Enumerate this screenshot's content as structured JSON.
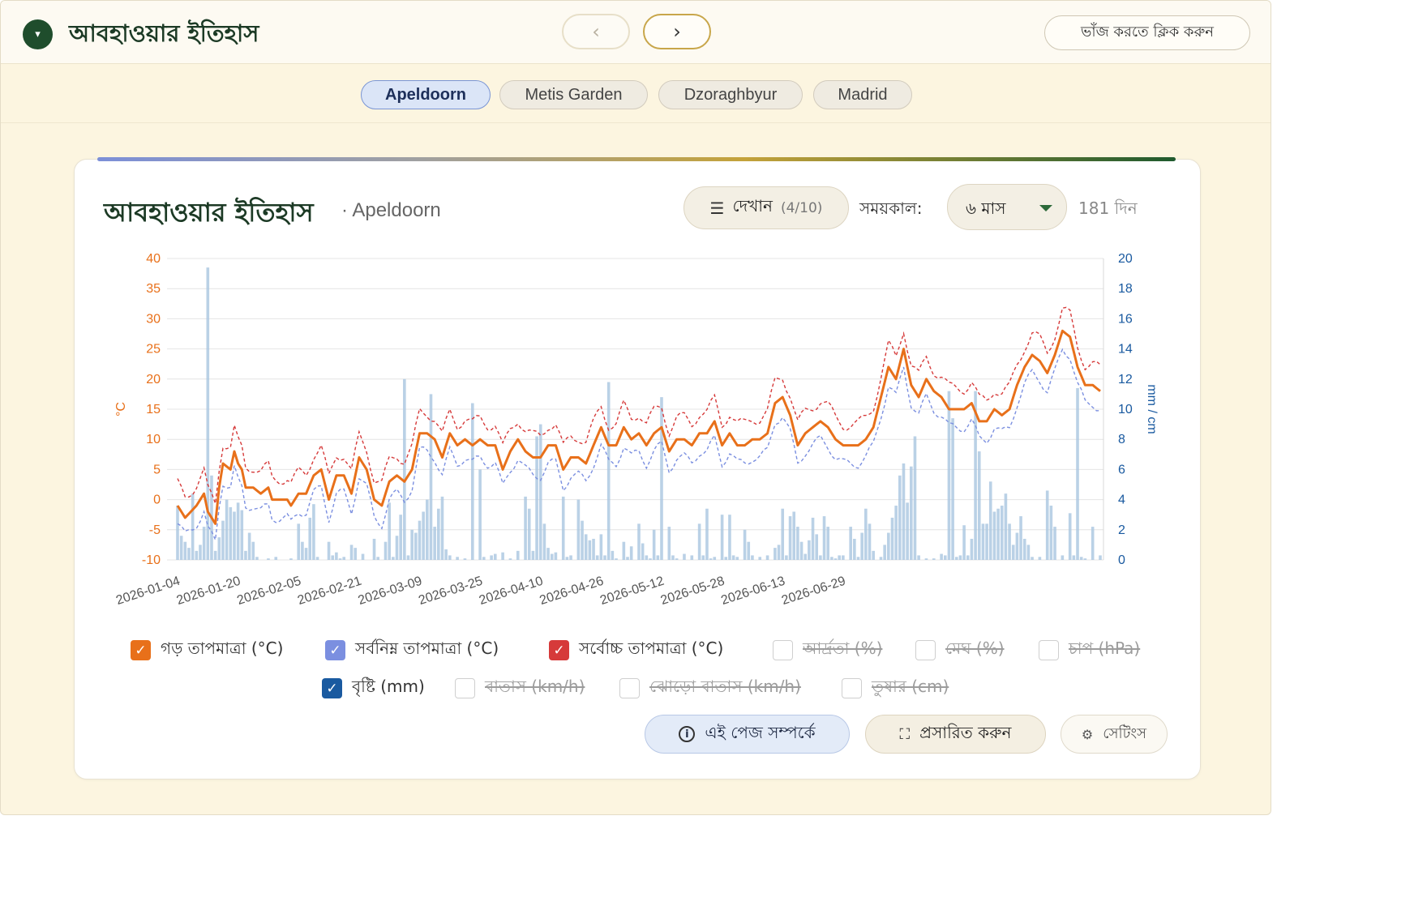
{
  "header": {
    "title": "আবহাওয়ার ইতিহাস",
    "collapse_icon": "▾",
    "prev_icon": "‹",
    "next_icon": "›",
    "collapse_label": "ভাঁজ করতে ক্লিক করুন"
  },
  "locations": [
    "Apeldoorn",
    "Metis Garden",
    "Dzoraghbyur",
    "Madrid"
  ],
  "active_location": "Apeldoorn",
  "card": {
    "title": "আবহাওয়ার ইতিহাস",
    "location": "· Apeldoorn",
    "show_icon": "☰",
    "show_label": "দেখান",
    "show_count": "(4/10)",
    "period_label": "সময়কাল:",
    "period_value": "৬ মাস",
    "days": "181 দিন"
  },
  "legend": [
    {
      "label": "গড় তাপমাত্রা (°C)",
      "checked": true,
      "color": "#e8701a"
    },
    {
      "label": "সর্বনিম্ন তাপমাত্রা (°C)",
      "checked": true,
      "color": "#7b8fe0"
    },
    {
      "label": "সর্বোচ্চ তাপমাত্রা (°C)",
      "checked": true,
      "color": "#d63a3a"
    },
    {
      "label": "আর্দ্রতা (%)",
      "checked": false
    },
    {
      "label": "মেঘ (%)",
      "checked": false
    },
    {
      "label": "চাপ (hPa)",
      "checked": false
    },
    {
      "label": "বৃষ্টি (mm)",
      "checked": true,
      "color": "#1a5aa0"
    },
    {
      "label": "বাতাস (km/h)",
      "checked": false
    },
    {
      "label": "ঝোড়ো বাতাস (km/h)",
      "checked": false
    },
    {
      "label": "তুষার (cm)",
      "checked": false
    }
  ],
  "buttons": {
    "about": "এই পেজ সম্পর্কে",
    "about_icon": "i",
    "expand": "প্রসারিত করুন",
    "expand_icon": "⛶",
    "settings": "সেটিংস",
    "settings_icon": "⚙"
  },
  "chart_data": {
    "type": "line",
    "left_axis": {
      "label": "°C",
      "min": -10,
      "max": 40,
      "ticks": [
        -10,
        -5,
        0,
        5,
        10,
        15,
        20,
        25,
        30,
        35,
        40
      ],
      "color": "#e8701a"
    },
    "right_axis": {
      "label": "mm / cm",
      "min": 0,
      "max": 20,
      "ticks": [
        0,
        2,
        4,
        6,
        8,
        10,
        12,
        14,
        16,
        18,
        20
      ],
      "color": "#1a5aa0"
    },
    "x_tick_labels": [
      "2026-01-04",
      "2026-01-20",
      "2026-02-05",
      "2026-02-21",
      "2026-03-09",
      "2026-03-25",
      "2026-04-10",
      "2026-04-26",
      "2026-05-12",
      "2026-05-28",
      "2026-06-13",
      "2026-06-29"
    ],
    "start_date": "2026-01-04",
    "grid": true,
    "avg_keypoints": [
      [
        0,
        -1
      ],
      [
        2,
        -3
      ],
      [
        5,
        -1
      ],
      [
        7,
        1
      ],
      [
        8,
        -2
      ],
      [
        9,
        -3
      ],
      [
        10,
        -4
      ],
      [
        11,
        2
      ],
      [
        12,
        6
      ],
      [
        14,
        5
      ],
      [
        15,
        8
      ],
      [
        16,
        6
      ],
      [
        17,
        5
      ],
      [
        18,
        2
      ],
      [
        20,
        2
      ],
      [
        22,
        1
      ],
      [
        24,
        2
      ],
      [
        25,
        0
      ],
      [
        27,
        0
      ],
      [
        29,
        0
      ],
      [
        30,
        -1
      ],
      [
        32,
        1
      ],
      [
        34,
        1
      ],
      [
        36,
        4
      ],
      [
        38,
        5
      ],
      [
        40,
        0
      ],
      [
        42,
        4
      ],
      [
        44,
        4
      ],
      [
        46,
        1
      ],
      [
        48,
        7
      ],
      [
        50,
        5
      ],
      [
        52,
        0
      ],
      [
        54,
        -1
      ],
      [
        56,
        3
      ],
      [
        58,
        4
      ],
      [
        60,
        3
      ],
      [
        62,
        5
      ],
      [
        64,
        11
      ],
      [
        66,
        11
      ],
      [
        68,
        10
      ],
      [
        70,
        7
      ],
      [
        72,
        11
      ],
      [
        74,
        9
      ],
      [
        76,
        10
      ],
      [
        78,
        9
      ],
      [
        80,
        10
      ],
      [
        82,
        9
      ],
      [
        84,
        9
      ],
      [
        86,
        5
      ],
      [
        88,
        8
      ],
      [
        90,
        10
      ],
      [
        92,
        8
      ],
      [
        94,
        7
      ],
      [
        96,
        7
      ],
      [
        98,
        9
      ],
      [
        100,
        9
      ],
      [
        102,
        5
      ],
      [
        104,
        7
      ],
      [
        106,
        7
      ],
      [
        108,
        6
      ],
      [
        110,
        9
      ],
      [
        112,
        12
      ],
      [
        114,
        9
      ],
      [
        116,
        9
      ],
      [
        118,
        12
      ],
      [
        120,
        10
      ],
      [
        122,
        11
      ],
      [
        124,
        9
      ],
      [
        126,
        11
      ],
      [
        128,
        12
      ],
      [
        130,
        8
      ],
      [
        132,
        10
      ],
      [
        134,
        10
      ],
      [
        136,
        9
      ],
      [
        138,
        11
      ],
      [
        140,
        11
      ],
      [
        142,
        13
      ],
      [
        144,
        9
      ],
      [
        146,
        11
      ],
      [
        148,
        9
      ],
      [
        150,
        9
      ],
      [
        152,
        10
      ],
      [
        154,
        10
      ],
      [
        156,
        11
      ],
      [
        158,
        16
      ],
      [
        160,
        17
      ],
      [
        162,
        14
      ],
      [
        164,
        9
      ],
      [
        166,
        11
      ],
      [
        168,
        12
      ],
      [
        170,
        13
      ],
      [
        172,
        12
      ],
      [
        174,
        10
      ],
      [
        176,
        9
      ],
      [
        178,
        9
      ],
      [
        180,
        9
      ],
      [
        182,
        10
      ],
      [
        184,
        12
      ],
      [
        186,
        17
      ],
      [
        188,
        22
      ],
      [
        190,
        20
      ],
      [
        192,
        25
      ],
      [
        194,
        19
      ],
      [
        196,
        17
      ],
      [
        198,
        20
      ],
      [
        200,
        18
      ],
      [
        202,
        17
      ],
      [
        204,
        15
      ],
      [
        206,
        15
      ],
      [
        208,
        15
      ],
      [
        210,
        16
      ],
      [
        212,
        13
      ],
      [
        214,
        13
      ],
      [
        216,
        15
      ],
      [
        218,
        14
      ],
      [
        220,
        15
      ],
      [
        222,
        19
      ],
      [
        224,
        22
      ],
      [
        226,
        24
      ],
      [
        228,
        23
      ],
      [
        230,
        21
      ],
      [
        232,
        24
      ],
      [
        234,
        28
      ],
      [
        236,
        27
      ],
      [
        238,
        22
      ],
      [
        240,
        19
      ],
      [
        242,
        19
      ],
      [
        244,
        18
      ]
    ],
    "max_offset": 3.5,
    "min_offset": -3,
    "precip_mm": [
      [
        0,
        3.6
      ],
      [
        1,
        1.6
      ],
      [
        2,
        1.2
      ],
      [
        3,
        0.8
      ],
      [
        4,
        4.4
      ],
      [
        5,
        0.6
      ],
      [
        6,
        1.0
      ],
      [
        7,
        2.2
      ],
      [
        8,
        19.4
      ],
      [
        9,
        5.6
      ],
      [
        10,
        0.6
      ],
      [
        11,
        1.5
      ],
      [
        12,
        2.6
      ],
      [
        13,
        4.0
      ],
      [
        14,
        3.5
      ],
      [
        15,
        3.2
      ],
      [
        16,
        3.8
      ],
      [
        17,
        3.3
      ],
      [
        18,
        0.6
      ],
      [
        19,
        1.8
      ],
      [
        20,
        1.2
      ],
      [
        21,
        0.2
      ],
      [
        24,
        0.1
      ],
      [
        26,
        0.2
      ],
      [
        30,
        0.1
      ],
      [
        32,
        2.4
      ],
      [
        33,
        1.2
      ],
      [
        34,
        0.8
      ],
      [
        35,
        2.8
      ],
      [
        36,
        3.7
      ],
      [
        37,
        0.2
      ],
      [
        40,
        1.2
      ],
      [
        41,
        0.3
      ],
      [
        42,
        0.5
      ],
      [
        43,
        0.1
      ],
      [
        44,
        0.2
      ],
      [
        46,
        1.0
      ],
      [
        47,
        0.8
      ],
      [
        49,
        0.4
      ],
      [
        52,
        1.4
      ],
      [
        53,
        0.2
      ],
      [
        55,
        1.2
      ],
      [
        56,
        3.8
      ],
      [
        57,
        0.2
      ],
      [
        58,
        1.6
      ],
      [
        59,
        3.0
      ],
      [
        60,
        12.0
      ],
      [
        61,
        0.3
      ],
      [
        62,
        2.0
      ],
      [
        63,
        1.8
      ],
      [
        64,
        2.6
      ],
      [
        65,
        3.2
      ],
      [
        66,
        4.0
      ],
      [
        67,
        11.0
      ],
      [
        68,
        2.2
      ],
      [
        69,
        3.4
      ],
      [
        70,
        4.2
      ],
      [
        71,
        0.7
      ],
      [
        72,
        0.3
      ],
      [
        74,
        0.2
      ],
      [
        76,
        0.1
      ],
      [
        78,
        10.4
      ],
      [
        80,
        6.0
      ],
      [
        81,
        0.2
      ],
      [
        83,
        0.3
      ],
      [
        84,
        0.4
      ],
      [
        86,
        0.5
      ],
      [
        88,
        0.1
      ],
      [
        90,
        0.6
      ],
      [
        92,
        4.2
      ],
      [
        93,
        3.4
      ],
      [
        94,
        0.6
      ],
      [
        95,
        8.2
      ],
      [
        96,
        9.0
      ],
      [
        97,
        2.4
      ],
      [
        98,
        0.8
      ],
      [
        99,
        0.4
      ],
      [
        100,
        0.5
      ],
      [
        102,
        4.2
      ],
      [
        103,
        0.2
      ],
      [
        104,
        0.3
      ],
      [
        106,
        4.0
      ],
      [
        107,
        2.6
      ],
      [
        108,
        1.7
      ],
      [
        109,
        1.3
      ],
      [
        110,
        1.4
      ],
      [
        111,
        0.3
      ],
      [
        112,
        1.7
      ],
      [
        113,
        0.3
      ],
      [
        114,
        11.8
      ],
      [
        115,
        0.6
      ],
      [
        116,
        0.1
      ],
      [
        118,
        1.2
      ],
      [
        119,
        0.2
      ],
      [
        120,
        0.9
      ],
      [
        122,
        2.4
      ],
      [
        123,
        1.1
      ],
      [
        124,
        0.3
      ],
      [
        125,
        0.1
      ],
      [
        126,
        2.0
      ],
      [
        127,
        0.3
      ],
      [
        128,
        10.8
      ],
      [
        130,
        2.2
      ],
      [
        131,
        0.3
      ],
      [
        132,
        0.1
      ],
      [
        134,
        0.4
      ],
      [
        136,
        0.3
      ],
      [
        138,
        2.4
      ],
      [
        139,
        0.3
      ],
      [
        140,
        3.4
      ],
      [
        141,
        0.1
      ],
      [
        142,
        0.2
      ],
      [
        144,
        3.0
      ],
      [
        145,
        0.2
      ],
      [
        146,
        3.0
      ],
      [
        147,
        0.3
      ],
      [
        148,
        0.2
      ],
      [
        150,
        2.0
      ],
      [
        151,
        1.2
      ],
      [
        152,
        0.3
      ],
      [
        154,
        0.2
      ],
      [
        156,
        0.3
      ],
      [
        158,
        0.8
      ],
      [
        159,
        1.0
      ],
      [
        160,
        3.4
      ],
      [
        161,
        0.3
      ],
      [
        162,
        2.9
      ],
      [
        163,
        3.2
      ],
      [
        164,
        2.2
      ],
      [
        165,
        1.2
      ],
      [
        166,
        0.4
      ],
      [
        167,
        1.3
      ],
      [
        168,
        2.8
      ],
      [
        169,
        1.7
      ],
      [
        170,
        0.3
      ],
      [
        171,
        2.9
      ],
      [
        172,
        2.2
      ],
      [
        173,
        0.2
      ],
      [
        174,
        0.1
      ],
      [
        175,
        0.3
      ],
      [
        176,
        0.3
      ],
      [
        178,
        2.2
      ],
      [
        179,
        1.4
      ],
      [
        180,
        0.2
      ],
      [
        181,
        1.8
      ],
      [
        182,
        3.4
      ],
      [
        183,
        2.4
      ],
      [
        184,
        0.6
      ],
      [
        186,
        0.2
      ],
      [
        187,
        1.0
      ],
      [
        188,
        1.8
      ],
      [
        189,
        2.8
      ],
      [
        190,
        3.6
      ],
      [
        191,
        5.6
      ],
      [
        192,
        6.4
      ],
      [
        193,
        3.8
      ],
      [
        194,
        6.2
      ],
      [
        195,
        8.2
      ],
      [
        196,
        0.3
      ],
      [
        198,
        0.1
      ],
      [
        200,
        0.1
      ],
      [
        202,
        0.4
      ],
      [
        203,
        0.3
      ],
      [
        204,
        11.2
      ],
      [
        205,
        9.4
      ],
      [
        206,
        0.2
      ],
      [
        207,
        0.3
      ],
      [
        208,
        2.3
      ],
      [
        209,
        0.3
      ],
      [
        210,
        1.4
      ],
      [
        211,
        11.2
      ],
      [
        212,
        7.2
      ],
      [
        213,
        2.4
      ],
      [
        214,
        2.4
      ],
      [
        215,
        5.2
      ],
      [
        216,
        3.2
      ],
      [
        217,
        3.4
      ],
      [
        218,
        3.6
      ],
      [
        219,
        4.4
      ],
      [
        220,
        2.4
      ],
      [
        221,
        1.0
      ],
      [
        222,
        1.8
      ],
      [
        223,
        2.9
      ],
      [
        224,
        1.4
      ],
      [
        225,
        1.0
      ],
      [
        226,
        0.2
      ],
      [
        228,
        0.2
      ],
      [
        230,
        4.6
      ],
      [
        231,
        3.6
      ],
      [
        232,
        2.2
      ],
      [
        234,
        0.3
      ],
      [
        236,
        3.1
      ],
      [
        237,
        0.3
      ],
      [
        238,
        11.4
      ],
      [
        239,
        0.2
      ],
      [
        240,
        0.1
      ],
      [
        242,
        2.2
      ],
      [
        244,
        0.3
      ]
    ]
  }
}
